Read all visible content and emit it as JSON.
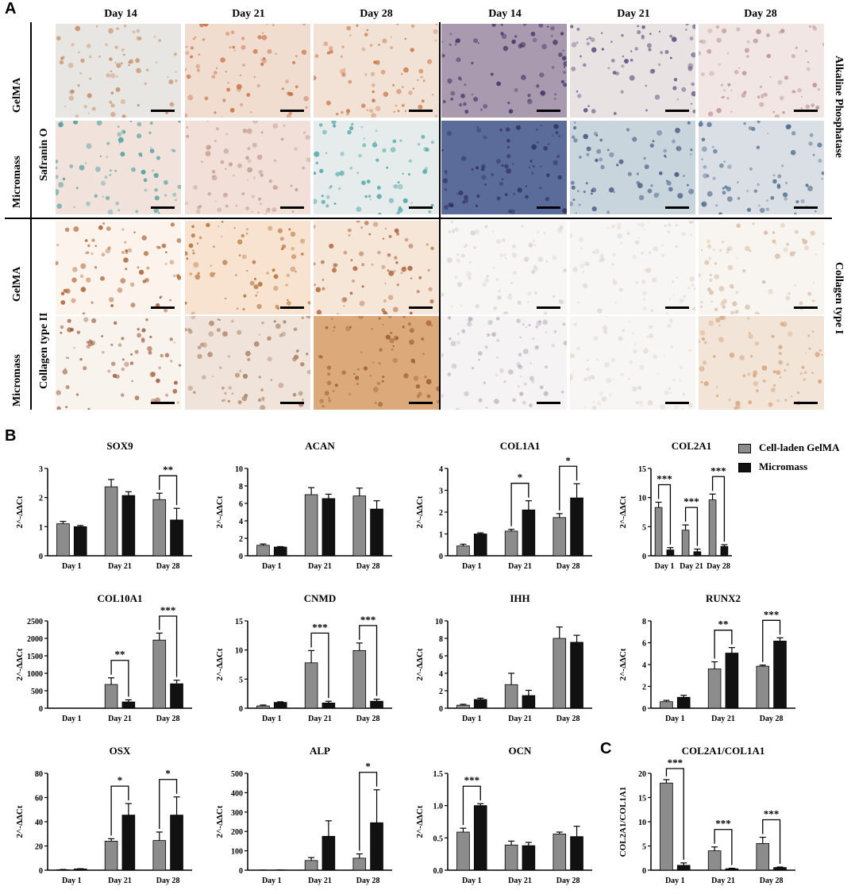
{
  "panel_labels": {
    "a": "A",
    "b": "B",
    "c": "C"
  },
  "histology": {
    "column_headers": [
      "Day 14",
      "Day 21",
      "Day 28",
      "Day 14",
      "Day 21",
      "Day 28"
    ],
    "left_group_labels": [
      "Safranin O",
      "Collagen type II"
    ],
    "right_group_labels": [
      "Alkaline Phosphatase",
      "Collagen type I"
    ],
    "row_labels": [
      "GelMA",
      "Micromass",
      "GelMA",
      "Micromass"
    ]
  },
  "legend": {
    "items": [
      {
        "label": "Cell-laden GelMA",
        "color": "#8c8c8c"
      },
      {
        "label": "Micromass",
        "color": "#111111"
      }
    ]
  },
  "colors": {
    "gelma": "#8c8c8c",
    "micromass": "#111111"
  },
  "chart_data": [
    {
      "type": "bar",
      "title": "SOX9",
      "ylabel": "2^-ΔΔCt",
      "categories": [
        "Day 1",
        "Day 21",
        "Day 28"
      ],
      "ylim": [
        0,
        3
      ],
      "yticks": [
        "0",
        "1",
        "2",
        "3"
      ],
      "series": [
        {
          "name": "Cell-laden GelMA",
          "values": [
            1.1,
            2.37,
            1.93
          ],
          "errors": [
            0.08,
            0.25,
            0.22
          ]
        },
        {
          "name": "Micromass",
          "values": [
            1.0,
            2.07,
            1.23
          ],
          "errors": [
            0.04,
            0.13,
            0.4
          ]
        }
      ],
      "significance": [
        {
          "category": 2,
          "label": "**"
        }
      ]
    },
    {
      "type": "bar",
      "title": "ACAN",
      "ylabel": "2^-ΔΔCt",
      "categories": [
        "Day 1",
        "Day 21",
        "Day 28"
      ],
      "ylim": [
        0,
        10
      ],
      "yticks": [
        "0",
        "2",
        "4",
        "6",
        "8",
        "10"
      ],
      "series": [
        {
          "name": "Cell-laden GelMA",
          "values": [
            1.2,
            7.0,
            6.85
          ],
          "errors": [
            0.15,
            0.8,
            0.9
          ]
        },
        {
          "name": "Micromass",
          "values": [
            1.0,
            6.55,
            5.35
          ],
          "errors": [
            0.05,
            0.5,
            0.95
          ]
        }
      ],
      "significance": []
    },
    {
      "type": "bar",
      "title": "COL1A1",
      "ylabel": "2^-ΔΔCt",
      "categories": [
        "Day 1",
        "Day 21",
        "Day 28"
      ],
      "ylim": [
        0,
        4
      ],
      "yticks": [
        "0",
        "1",
        "2",
        "3",
        "4"
      ],
      "series": [
        {
          "name": "Cell-laden GelMA",
          "values": [
            0.45,
            1.13,
            1.75
          ],
          "errors": [
            0.08,
            0.08,
            0.18
          ]
        },
        {
          "name": "Micromass",
          "values": [
            1.0,
            2.1,
            2.65
          ],
          "errors": [
            0.05,
            0.42,
            0.65
          ]
        }
      ],
      "significance": [
        {
          "category": 1,
          "label": "*"
        },
        {
          "category": 2,
          "label": "*"
        }
      ]
    },
    {
      "type": "bar",
      "title": "COL2A1",
      "ylabel": "2^-ΔΔCt",
      "categories": [
        "Day 1",
        "Day 21",
        "Day 28"
      ],
      "ylim": [
        0,
        15
      ],
      "yticks": [
        "0",
        "5",
        "10",
        "15"
      ],
      "series": [
        {
          "name": "Cell-laden GelMA",
          "values": [
            8.3,
            4.4,
            9.6
          ],
          "errors": [
            0.9,
            0.9,
            1.0
          ]
        },
        {
          "name": "Micromass",
          "values": [
            1.0,
            0.7,
            1.6
          ],
          "errors": [
            0.4,
            0.45,
            0.3
          ]
        }
      ],
      "significance": [
        {
          "category": 0,
          "label": "***"
        },
        {
          "category": 1,
          "label": "***"
        },
        {
          "category": 2,
          "label": "***"
        }
      ]
    },
    {
      "type": "bar",
      "title": "COL10A1",
      "ylabel": "2^-ΔΔCt",
      "categories": [
        "Day 1",
        "Day 21",
        "Day 28"
      ],
      "ylim": [
        0,
        2500
      ],
      "yticks": [
        "0",
        "500",
        "1000",
        "1500",
        "2000",
        "2500"
      ],
      "series": [
        {
          "name": "Cell-laden GelMA",
          "values": [
            0,
            680,
            1950
          ],
          "errors": [
            0,
            190,
            200
          ]
        },
        {
          "name": "Micromass",
          "values": [
            0,
            180,
            700
          ],
          "errors": [
            0,
            60,
            100
          ]
        }
      ],
      "significance": [
        {
          "category": 1,
          "label": "**"
        },
        {
          "category": 2,
          "label": "***"
        }
      ]
    },
    {
      "type": "bar",
      "title": "CNMD",
      "ylabel": "2^-ΔΔCt",
      "categories": [
        "Day 1",
        "Day 21",
        "Day 28"
      ],
      "ylim": [
        0,
        15
      ],
      "yticks": [
        "0",
        "5",
        "10",
        "15"
      ],
      "series": [
        {
          "name": "Cell-laden GelMA",
          "values": [
            0.4,
            7.8,
            9.9
          ],
          "errors": [
            0.15,
            2.1,
            1.3
          ]
        },
        {
          "name": "Micromass",
          "values": [
            1.0,
            0.9,
            1.2
          ],
          "errors": [
            0.1,
            0.3,
            0.35
          ]
        }
      ],
      "significance": [
        {
          "category": 1,
          "label": "***"
        },
        {
          "category": 2,
          "label": "***"
        }
      ]
    },
    {
      "type": "bar",
      "title": "IHH",
      "ylabel": "2^-ΔΔCt",
      "categories": [
        "Day 1",
        "Day 21",
        "Day 28"
      ],
      "ylim": [
        0,
        10
      ],
      "yticks": [
        "0",
        "2",
        "4",
        "6",
        "8",
        "10"
      ],
      "series": [
        {
          "name": "Cell-laden GelMA",
          "values": [
            0.35,
            2.7,
            8.0
          ],
          "errors": [
            0.1,
            1.3,
            1.3
          ]
        },
        {
          "name": "Micromass",
          "values": [
            1.0,
            1.45,
            7.55
          ],
          "errors": [
            0.15,
            0.6,
            0.8
          ]
        }
      ],
      "significance": []
    },
    {
      "type": "bar",
      "title": "RUNX2",
      "ylabel": "2^-ΔΔCt",
      "categories": [
        "Day 1",
        "Day 21",
        "Day 28"
      ],
      "ylim": [
        0,
        8
      ],
      "yticks": [
        "0",
        "2",
        "4",
        "6",
        "8"
      ],
      "series": [
        {
          "name": "Cell-laden GelMA",
          "values": [
            0.6,
            3.6,
            3.85
          ],
          "errors": [
            0.12,
            0.65,
            0.1
          ]
        },
        {
          "name": "Micromass",
          "values": [
            1.0,
            5.05,
            6.15
          ],
          "errors": [
            0.18,
            0.5,
            0.3
          ]
        }
      ],
      "significance": [
        {
          "category": 1,
          "label": "**"
        },
        {
          "category": 2,
          "label": "***"
        }
      ]
    },
    {
      "type": "bar",
      "title": "OSX",
      "ylabel": "2^-ΔΔCt",
      "categories": [
        "Day 1",
        "Day 21",
        "Day 28"
      ],
      "ylim": [
        0,
        80
      ],
      "yticks": [
        "0",
        "20",
        "40",
        "60",
        "80"
      ],
      "series": [
        {
          "name": "Cell-laden GelMA",
          "values": [
            0.4,
            24,
            24.5
          ],
          "errors": [
            0.2,
            2.0,
            7.0
          ]
        },
        {
          "name": "Micromass",
          "values": [
            1.0,
            45.5,
            45.5
          ],
          "errors": [
            0.2,
            9.5,
            15
          ]
        }
      ],
      "significance": [
        {
          "category": 1,
          "label": "*"
        },
        {
          "category": 2,
          "label": "*"
        }
      ]
    },
    {
      "type": "bar",
      "title": "ALP",
      "ylabel": "2^-ΔΔCt",
      "categories": [
        "Day 1",
        "Day 21",
        "Day 28"
      ],
      "ylim": [
        0,
        500
      ],
      "yticks": [
        "0",
        "100",
        "200",
        "300",
        "400",
        "500"
      ],
      "series": [
        {
          "name": "Cell-laden GelMA",
          "values": [
            0.5,
            50,
            62
          ],
          "errors": [
            0.2,
            15,
            22
          ]
        },
        {
          "name": "Micromass",
          "values": [
            1.0,
            175,
            245
          ],
          "errors": [
            0.3,
            80,
            170
          ]
        }
      ],
      "significance": [
        {
          "category": 2,
          "label": "*"
        }
      ]
    },
    {
      "type": "bar",
      "title": "OCN",
      "ylabel": "2^-ΔΔCt",
      "categories": [
        "Day 1",
        "Day 21",
        "Day 28"
      ],
      "ylim": [
        0,
        1.5
      ],
      "yticks": [
        "0.0",
        "0.5",
        "1.0",
        "1.5"
      ],
      "series": [
        {
          "name": "Cell-laden GelMA",
          "values": [
            0.59,
            0.39,
            0.56
          ],
          "errors": [
            0.06,
            0.06,
            0.03
          ]
        },
        {
          "name": "Micromass",
          "values": [
            1.0,
            0.38,
            0.52
          ],
          "errors": [
            0.03,
            0.05,
            0.16
          ]
        }
      ],
      "significance": [
        {
          "category": 0,
          "label": "***"
        }
      ]
    },
    {
      "type": "bar",
      "title": "COL2A1/COL1A1",
      "ylabel": "COL2A1/COL1A1",
      "categories": [
        "Day 1",
        "Day 21",
        "Day 28"
      ],
      "ylim": [
        0,
        20
      ],
      "yticks": [
        "0",
        "5",
        "10",
        "15",
        "20"
      ],
      "series": [
        {
          "name": "Cell-laden GelMA",
          "values": [
            18.0,
            4.0,
            5.5
          ],
          "errors": [
            0.7,
            0.8,
            1.3
          ]
        },
        {
          "name": "Micromass",
          "values": [
            1.0,
            0.3,
            0.55
          ],
          "errors": [
            0.5,
            0.1,
            0.1
          ]
        }
      ],
      "significance": [
        {
          "category": 0,
          "label": "***"
        },
        {
          "category": 1,
          "label": "***"
        },
        {
          "category": 2,
          "label": "***"
        }
      ]
    }
  ]
}
